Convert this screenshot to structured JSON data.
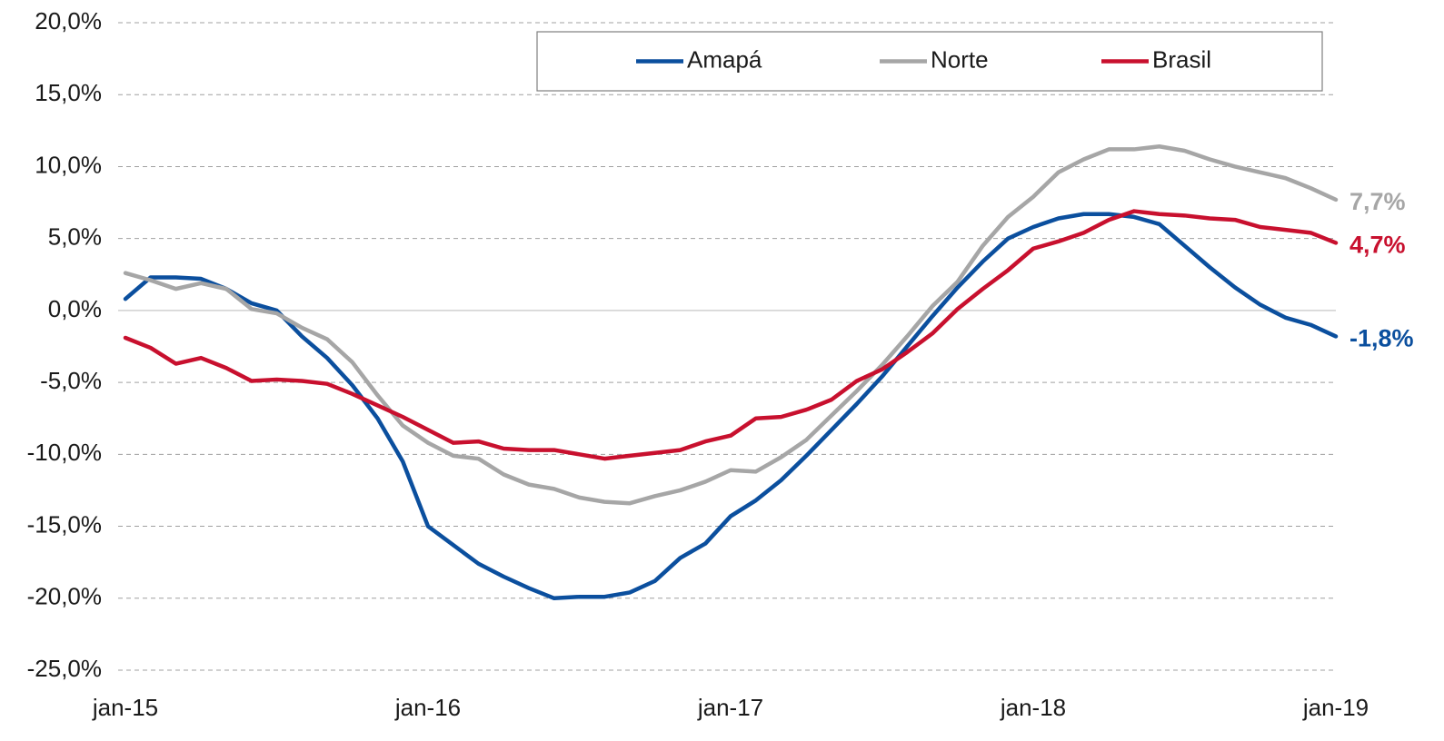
{
  "chart_data": {
    "type": "line",
    "categories": [
      "jan-15",
      null,
      null,
      null,
      null,
      null,
      null,
      null,
      null,
      null,
      null,
      null,
      "jan-16",
      null,
      null,
      null,
      null,
      null,
      null,
      null,
      null,
      null,
      null,
      null,
      "jan-17",
      null,
      null,
      null,
      null,
      null,
      null,
      null,
      null,
      null,
      null,
      null,
      "jan-18",
      null,
      null,
      null,
      null,
      null,
      null,
      null,
      null,
      null,
      null,
      null,
      "jan-19"
    ],
    "series": [
      {
        "name": "Amapá",
        "color": "#0b4f9e",
        "values": [
          0.8,
          2.3,
          2.3,
          2.2,
          1.5,
          0.5,
          0,
          -1.8,
          -3.3,
          -5.2,
          -7.5,
          -10.5,
          -15.0,
          -16.3,
          -17.6,
          -18.5,
          -19.3,
          -20.0,
          -19.9,
          -19.9,
          -19.6,
          -18.8,
          -17.2,
          -16.2,
          -14.3,
          -13.2,
          -11.8,
          -10.1,
          -8.3,
          -6.5,
          -4.6,
          -2.5,
          -0.4,
          1.6,
          3.4,
          5.0,
          5.8,
          6.4,
          6.7,
          6.7,
          6.5,
          6.0,
          4.5,
          3.0,
          1.6,
          0.4,
          -0.5,
          -1.0,
          -1.8
        ],
        "value_labels": [
          null,
          null,
          null,
          null,
          null,
          null,
          null,
          null,
          null,
          null,
          null,
          null,
          null,
          null,
          null,
          null,
          null,
          null,
          null,
          null,
          null,
          null,
          null,
          null,
          null,
          null,
          null,
          null,
          null,
          null,
          null,
          null,
          null,
          null,
          null,
          null,
          null,
          null,
          null,
          null,
          null,
          null,
          null,
          null,
          null,
          null,
          null,
          null,
          "-1,8%"
        ]
      },
      {
        "name": "Norte",
        "color": "#a6a6a6",
        "values": [
          2.6,
          2.1,
          1.5,
          1.9,
          1.5,
          0.1,
          -0.2,
          -1.2,
          -2.0,
          -3.6,
          -5.9,
          -8.0,
          -9.2,
          -10.1,
          -10.3,
          -11.4,
          -12.1,
          -12.4,
          -13.0,
          -13.3,
          -13.4,
          -12.9,
          -12.5,
          -11.9,
          -11.1,
          -11.2,
          -10.2,
          -9.0,
          -7.3,
          -5.6,
          -3.8,
          -1.8,
          0.3,
          2.0,
          4.5,
          6.5,
          7.9,
          9.6,
          10.5,
          11.2,
          11.2,
          11.4,
          11.1,
          10.5,
          10.0,
          9.6,
          9.2,
          8.5,
          7.7
        ],
        "value_labels": [
          null,
          null,
          null,
          null,
          null,
          null,
          null,
          null,
          null,
          null,
          null,
          null,
          null,
          null,
          null,
          null,
          null,
          null,
          null,
          null,
          null,
          null,
          null,
          null,
          null,
          null,
          null,
          null,
          null,
          null,
          null,
          null,
          null,
          null,
          null,
          null,
          null,
          null,
          null,
          null,
          null,
          null,
          null,
          null,
          null,
          null,
          null,
          null,
          "7,7%"
        ]
      },
      {
        "name": "Brasil",
        "color": "#c8102e",
        "values": [
          -1.9,
          -2.6,
          -3.7,
          -3.3,
          -4.0,
          -4.9,
          -4.8,
          -4.9,
          -5.1,
          -5.8,
          -6.6,
          -7.4,
          -8.3,
          -9.2,
          -9.1,
          -9.6,
          -9.7,
          -9.7,
          -10.0,
          -10.3,
          -10.1,
          -9.9,
          -9.7,
          -9.1,
          -8.7,
          -7.5,
          -7.4,
          -6.9,
          -6.2,
          -4.9,
          -4.1,
          -2.9,
          -1.6,
          0.1,
          1.5,
          2.8,
          4.3,
          4.8,
          5.4,
          6.3,
          6.9,
          6.7,
          6.6,
          6.4,
          6.3,
          5.8,
          5.6,
          5.4,
          4.7
        ],
        "value_labels": [
          null,
          null,
          null,
          null,
          null,
          null,
          null,
          null,
          null,
          null,
          null,
          null,
          null,
          null,
          null,
          null,
          null,
          null,
          null,
          null,
          null,
          null,
          null,
          null,
          null,
          null,
          null,
          null,
          null,
          null,
          null,
          null,
          null,
          null,
          null,
          null,
          null,
          null,
          null,
          null,
          null,
          null,
          null,
          null,
          null,
          null,
          null,
          null,
          "4,7%"
        ]
      }
    ],
    "ylim": [
      -25,
      20
    ],
    "yticks": [
      {
        "value": -25,
        "label": "-25,0%"
      },
      {
        "value": -20,
        "label": "-20,0%"
      },
      {
        "value": -15,
        "label": "-15,0%"
      },
      {
        "value": -10,
        "label": "-10,0%"
      },
      {
        "value": -5,
        "label": "-5,0%"
      },
      {
        "value": 0,
        "label": "0,0%"
      },
      {
        "value": 5,
        "label": "5,0%"
      },
      {
        "value": 10,
        "label": "10,0%"
      },
      {
        "value": 15,
        "label": "15,0%"
      },
      {
        "value": 20,
        "label": "20,0%"
      }
    ],
    "grid": true,
    "legend": "top-right"
  }
}
